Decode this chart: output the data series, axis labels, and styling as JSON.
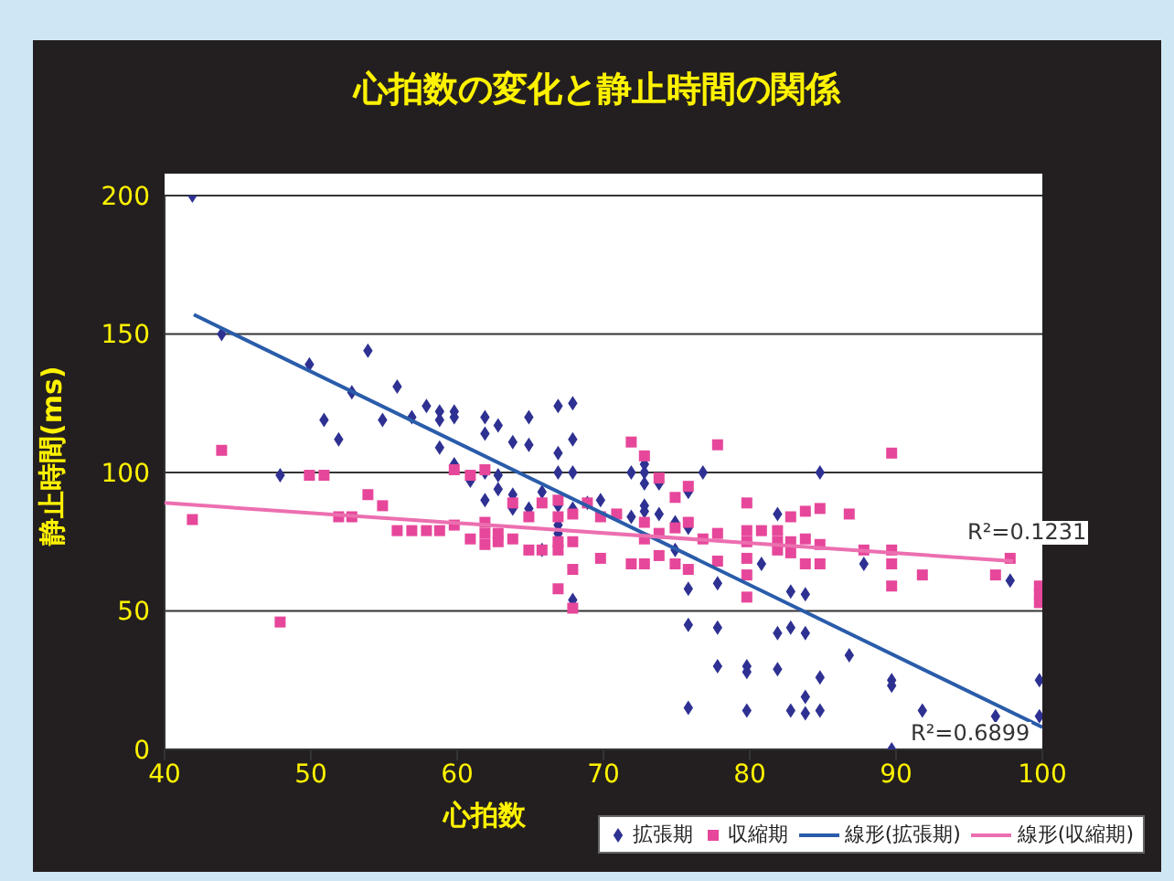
{
  "chart_data": {
    "type": "scatter",
    "title": "心拍数の変化と静止時間の関係",
    "xlabel": "心拍数",
    "ylabel": "静止時間(ms)",
    "xlim": [
      40,
      100
    ],
    "xticks": [
      40,
      50,
      60,
      70,
      80,
      90,
      100
    ],
    "ylim": [
      0,
      200
    ],
    "yticks": [
      0,
      50,
      100,
      150,
      200
    ],
    "grid": "y",
    "legend": "bottom right",
    "series": [
      {
        "name": "拡張期",
        "type": "scatter",
        "marker": "diamond",
        "color": "#2e3192",
        "x": [
          41.9,
          43.9,
          47.9,
          49.9,
          50.9,
          51.9,
          52.8,
          53.9,
          54.9,
          55.9,
          56.9,
          57.9,
          58.8,
          58.8,
          58.8,
          59.8,
          59.8,
          59.8,
          60.9,
          61.9,
          61.9,
          61.9,
          61.9,
          62.8,
          62.8,
          62.8,
          63.8,
          63.8,
          63.8,
          64.9,
          64.9,
          64.9,
          65.8,
          65.8,
          66.9,
          66.9,
          66.9,
          66.9,
          66.9,
          66.9,
          67.9,
          67.9,
          67.9,
          67.9,
          67.9,
          68.9,
          69.8,
          71.9,
          71.9,
          72.8,
          72.8,
          72.8,
          72.8,
          72.8,
          73.8,
          73.8,
          74.9,
          74.9,
          75.8,
          75.8,
          75.8,
          75.8,
          75.8,
          76.8,
          77.8,
          77.8,
          77.8,
          79.8,
          79.8,
          79.8,
          80.8,
          81.9,
          81.9,
          81.9,
          82.8,
          82.8,
          82.8,
          83.8,
          83.8,
          83.8,
          83.8,
          84.8,
          84.8,
          84.8,
          86.8,
          87.8,
          89.7,
          89.7,
          89.7,
          91.8,
          96.8,
          97.8,
          99.8,
          99.8
        ],
        "values": [
          200,
          150,
          99,
          139,
          119,
          112,
          129,
          144,
          119,
          131,
          120,
          124,
          122,
          119,
          109,
          122,
          120,
          103,
          97,
          120,
          114,
          100,
          90,
          117,
          99,
          94,
          111,
          92,
          87,
          120,
          110,
          87,
          93,
          72,
          124,
          107,
          100,
          88,
          81,
          78,
          125,
          112,
          100,
          87,
          54,
          89,
          90,
          100,
          84,
          103,
          100,
          96,
          88,
          86,
          96,
          85,
          82,
          72,
          93,
          80,
          58,
          45,
          15,
          100,
          60,
          44,
          30,
          30,
          28,
          14,
          67,
          85,
          42,
          29,
          57,
          44,
          14,
          56,
          42,
          19,
          13,
          100,
          26,
          14,
          34,
          67,
          25,
          23,
          0,
          14,
          12,
          61,
          25,
          12
        ]
      },
      {
        "name": "収縮期",
        "type": "scatter",
        "marker": "square",
        "color": "#e6479a",
        "x": [
          41.9,
          43.9,
          47.9,
          49.9,
          50.9,
          51.9,
          52.8,
          53.9,
          54.9,
          55.9,
          56.9,
          57.9,
          58.8,
          59.8,
          59.8,
          60.9,
          60.9,
          61.9,
          61.9,
          61.9,
          61.9,
          62.8,
          62.8,
          63.8,
          63.8,
          64.9,
          64.9,
          65.8,
          65.8,
          66.9,
          66.9,
          66.9,
          66.9,
          66.9,
          67.9,
          67.9,
          67.9,
          67.9,
          68.9,
          69.8,
          69.8,
          70.9,
          71.9,
          71.9,
          72.8,
          72.8,
          72.8,
          72.8,
          73.8,
          73.8,
          73.8,
          74.9,
          74.9,
          74.9,
          75.8,
          75.8,
          75.8,
          76.8,
          77.8,
          77.8,
          77.8,
          79.8,
          79.8,
          79.8,
          79.8,
          79.8,
          79.8,
          80.8,
          81.9,
          81.9,
          81.9,
          82.8,
          82.8,
          82.8,
          83.8,
          83.8,
          83.8,
          84.8,
          84.8,
          84.8,
          86.8,
          87.8,
          89.7,
          89.7,
          89.7,
          89.7,
          91.8,
          96.8,
          97.8,
          99.8,
          99.8,
          99.8
        ],
        "values": [
          83,
          108,
          46,
          99,
          99,
          84,
          84,
          92,
          88,
          79,
          79,
          79,
          79,
          101,
          81,
          99,
          76,
          101,
          82,
          78,
          74,
          78,
          75,
          89,
          76,
          84,
          72,
          89,
          72,
          90,
          84,
          75,
          72,
          58,
          85,
          75,
          65,
          51,
          89,
          84,
          69,
          85,
          111,
          67,
          106,
          82,
          76,
          67,
          98,
          78,
          70,
          91,
          80,
          67,
          95,
          82,
          65,
          76,
          110,
          78,
          68,
          89,
          79,
          75,
          69,
          63,
          55,
          79,
          79,
          75,
          72,
          84,
          75,
          71,
          86,
          76,
          67,
          87,
          74,
          67,
          85,
          72,
          107,
          72,
          67,
          59,
          63,
          63,
          69,
          59,
          56,
          53
        ]
      },
      {
        "name": "線形(拡張期)",
        "type": "line",
        "marker": "none",
        "color": "#2a5caa",
        "x": [
          42,
          100
        ],
        "values": [
          157,
          8
        ]
      },
      {
        "name": "線形(収縮期)",
        "type": "line",
        "marker": "none",
        "color": "#ec6fb0",
        "x": [
          40,
          98
        ],
        "values": [
          89,
          68
        ]
      }
    ],
    "annotations": [
      "R²=0.1231",
      "R²=0.6899"
    ]
  }
}
